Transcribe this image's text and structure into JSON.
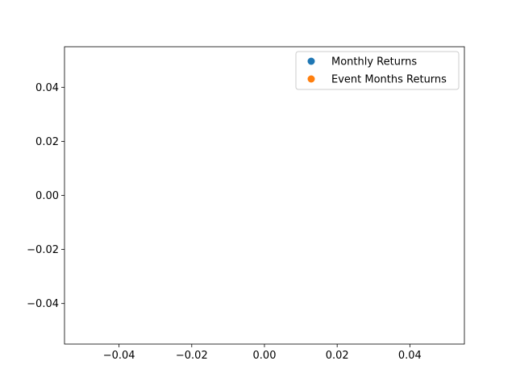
{
  "chart_data": {
    "type": "scatter",
    "title": "",
    "xlabel": "",
    "ylabel": "",
    "xlim": [
      -0.055,
      0.055
    ],
    "ylim": [
      -0.055,
      0.055
    ],
    "xticks": [
      -0.04,
      -0.02,
      0.0,
      0.02,
      0.04
    ],
    "yticks": [
      -0.04,
      -0.02,
      0.0,
      0.02,
      0.04
    ],
    "xtick_labels": [
      "−0.04",
      "−0.02",
      "0.00",
      "0.02",
      "0.04"
    ],
    "ytick_labels": [
      "−0.04",
      "−0.02",
      "0.00",
      "0.02",
      "0.04"
    ],
    "grid": false,
    "legend": {
      "placement": "top-right",
      "entries": [
        {
          "name": "Monthly Returns",
          "color": "#1f77b4"
        },
        {
          "name": "Event Months Returns",
          "color": "#ff7f0e"
        }
      ]
    },
    "series": [
      {
        "name": "Monthly Returns",
        "color": "#1f77b4",
        "points": []
      },
      {
        "name": "Event Months Returns",
        "color": "#ff7f0e",
        "points": []
      }
    ]
  }
}
